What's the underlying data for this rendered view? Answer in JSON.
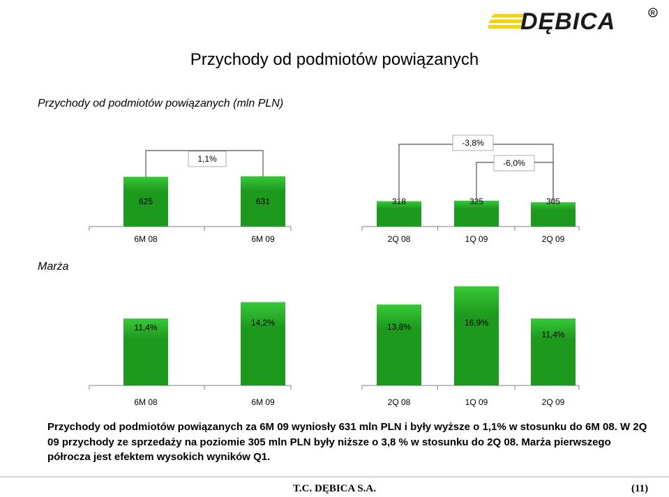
{
  "header": {
    "logo_text": "DĘBICA",
    "title": "Przychody od podmiotów powiązanych"
  },
  "revenue_section": {
    "label": "Przychody od podmiotów powiązanych (mln PLN)"
  },
  "margin_section": {
    "label": "Marża"
  },
  "description": "Przychody od podmiotów powiązanych za 6M 09 wyniosły 631 mln PLN i były wyższe o 1,1% w stosunku do 6M 08. W 2Q 09 przychody ze sprzedaży na poziomie 305 mln PLN były niższe o 3,8 % w stosunku do 2Q 08. Marża pierwszego półrocza jest efektem wysokich wyników Q1.",
  "footer": {
    "company": "T.C. DĘBICA S.A.",
    "page": "(11)"
  },
  "colors": {
    "bar_green": "#1d9a1d",
    "bar_top": "#39c839",
    "axis": "#808080",
    "logo_yellow": "#f5d200"
  },
  "chart_data": [
    {
      "type": "bar",
      "title": "Przychody od podmiotów powiązanych (mln PLN)",
      "categories": [
        "6M 08",
        "6M 09",
        "2Q 08",
        "1Q 09",
        "2Q 09"
      ],
      "values": [
        625,
        631,
        318,
        325,
        305
      ],
      "value_labels": [
        "625",
        "631",
        "318",
        "325",
        "305"
      ],
      "ylim": [
        0,
        700
      ],
      "annotations": [
        {
          "text": "1,1%",
          "from": "6M 08",
          "to": "6M 09"
        },
        {
          "text": "-3,8%",
          "from": "2Q 08",
          "to": "2Q 09"
        },
        {
          "text": "-6,0%",
          "from": "1Q 09",
          "to": "2Q 09"
        }
      ]
    },
    {
      "type": "bar",
      "title": "Marża",
      "categories": [
        "6M 08",
        "6M 09",
        "2Q 08",
        "1Q 09",
        "2Q 09"
      ],
      "values": [
        11.4,
        14.2,
        13.8,
        16.9,
        11.4
      ],
      "value_labels": [
        "11,4%",
        "14,2%",
        "13,8%",
        "16,9%",
        "11,4%"
      ],
      "ylim": [
        0,
        19
      ]
    }
  ]
}
